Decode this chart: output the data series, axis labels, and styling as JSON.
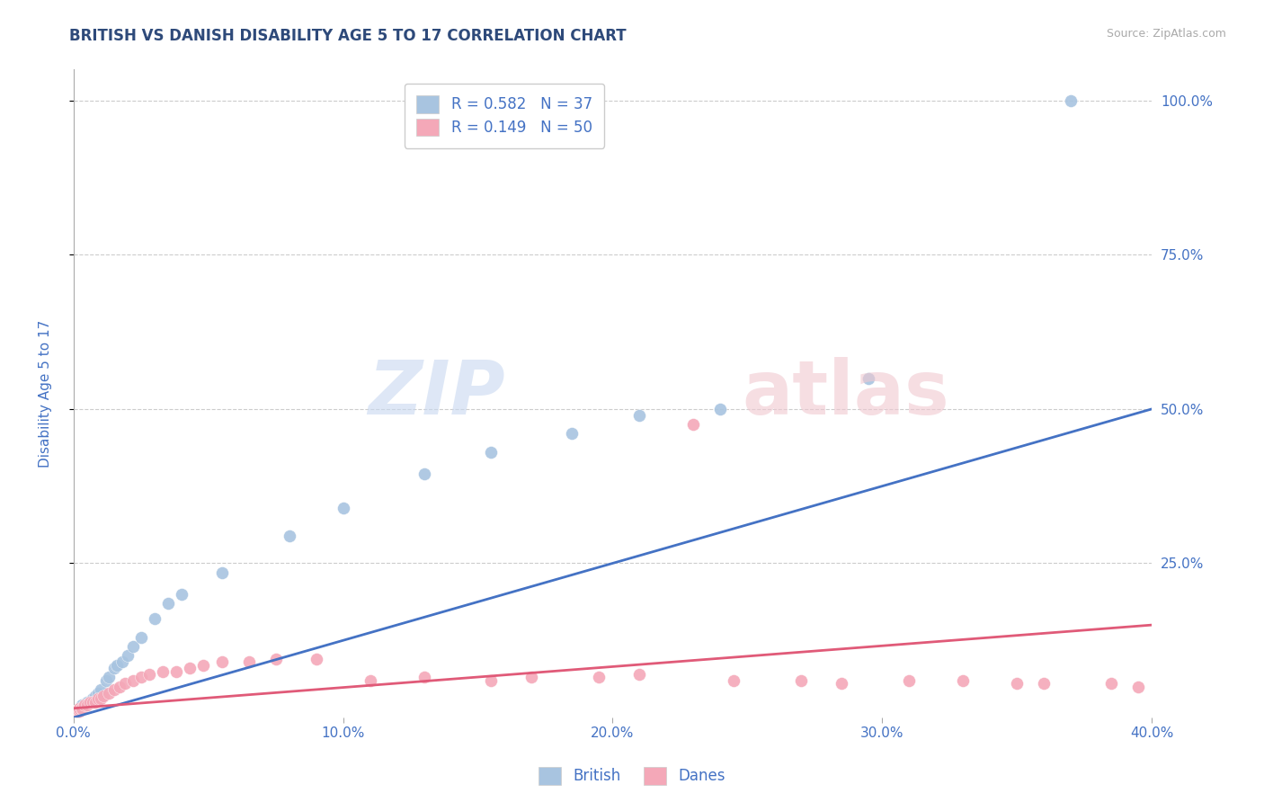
{
  "title": "BRITISH VS DANISH DISABILITY AGE 5 TO 17 CORRELATION CHART",
  "source": "Source: ZipAtlas.com",
  "ylabel": "Disability Age 5 to 17",
  "xlim": [
    0.0,
    0.4
  ],
  "ylim": [
    0.0,
    1.05
  ],
  "xtick_labels": [
    "0.0%",
    "10.0%",
    "20.0%",
    "30.0%",
    "40.0%"
  ],
  "xtick_values": [
    0.0,
    0.1,
    0.2,
    0.3,
    0.4
  ],
  "ytick_labels": [
    "25.0%",
    "50.0%",
    "75.0%",
    "100.0%"
  ],
  "ytick_values": [
    0.25,
    0.5,
    0.75,
    1.0
  ],
  "british_color": "#a8c4e0",
  "danish_color": "#f4a8b8",
  "british_line_color": "#4472c4",
  "danish_line_color": "#e05a78",
  "title_color": "#2e4a7a",
  "axis_color": "#4472c4",
  "legend_text_color": "#4472c4",
  "R_british": 0.582,
  "N_british": 37,
  "R_danish": 0.149,
  "N_danish": 50,
  "background_color": "#ffffff",
  "grid_color": "#cccccc",
  "british_x": [
    0.001,
    0.001,
    0.001,
    0.001,
    0.002,
    0.002,
    0.002,
    0.003,
    0.003,
    0.004,
    0.005,
    0.006,
    0.007,
    0.008,
    0.009,
    0.01,
    0.012,
    0.013,
    0.015,
    0.016,
    0.018,
    0.02,
    0.022,
    0.025,
    0.03,
    0.035,
    0.04,
    0.055,
    0.08,
    0.1,
    0.13,
    0.155,
    0.185,
    0.21,
    0.24,
    0.295,
    0.37
  ],
  "british_y": [
    0.01,
    0.01,
    0.01,
    0.01,
    0.01,
    0.015,
    0.015,
    0.015,
    0.02,
    0.02,
    0.025,
    0.025,
    0.03,
    0.035,
    0.04,
    0.045,
    0.06,
    0.065,
    0.08,
    0.085,
    0.09,
    0.1,
    0.115,
    0.13,
    0.16,
    0.185,
    0.2,
    0.235,
    0.295,
    0.34,
    0.395,
    0.43,
    0.46,
    0.49,
    0.5,
    0.55,
    1.0
  ],
  "danish_x": [
    0.001,
    0.001,
    0.001,
    0.001,
    0.001,
    0.001,
    0.002,
    0.002,
    0.002,
    0.003,
    0.003,
    0.004,
    0.005,
    0.006,
    0.007,
    0.008,
    0.009,
    0.01,
    0.011,
    0.013,
    0.015,
    0.017,
    0.019,
    0.022,
    0.025,
    0.028,
    0.033,
    0.038,
    0.043,
    0.048,
    0.055,
    0.065,
    0.075,
    0.09,
    0.11,
    0.13,
    0.155,
    0.17,
    0.195,
    0.21,
    0.23,
    0.245,
    0.27,
    0.285,
    0.31,
    0.33,
    0.35,
    0.36,
    0.385,
    0.395
  ],
  "danish_y": [
    0.01,
    0.01,
    0.01,
    0.01,
    0.01,
    0.01,
    0.01,
    0.01,
    0.015,
    0.015,
    0.015,
    0.02,
    0.02,
    0.025,
    0.025,
    0.025,
    0.03,
    0.03,
    0.035,
    0.04,
    0.045,
    0.05,
    0.055,
    0.06,
    0.065,
    0.07,
    0.075,
    0.075,
    0.08,
    0.085,
    0.09,
    0.09,
    0.095,
    0.095,
    0.06,
    0.065,
    0.06,
    0.065,
    0.065,
    0.07,
    0.475,
    0.06,
    0.06,
    0.055,
    0.06,
    0.06,
    0.055,
    0.055,
    0.055,
    0.05
  ],
  "british_line": [
    0.0,
    0.4,
    0.0,
    0.5
  ],
  "danish_line": [
    0.0,
    0.4,
    0.015,
    0.15
  ]
}
